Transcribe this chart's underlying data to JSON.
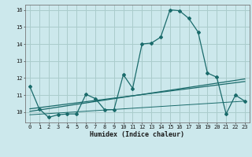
{
  "xlabel": "Humidex (Indice chaleur)",
  "bg_color": "#cce8ec",
  "grid_color": "#aacccc",
  "line_color": "#1a6b6b",
  "xlim": [
    -0.5,
    23.5
  ],
  "ylim": [
    9.4,
    16.3
  ],
  "xticks": [
    0,
    1,
    2,
    3,
    4,
    5,
    6,
    7,
    8,
    9,
    10,
    11,
    12,
    13,
    14,
    15,
    16,
    17,
    18,
    19,
    20,
    21,
    22,
    23
  ],
  "yticks": [
    10,
    11,
    12,
    13,
    14,
    15,
    16
  ],
  "series1_x": [
    0,
    1,
    2,
    3,
    4,
    5,
    6,
    7,
    8,
    9,
    10,
    11,
    12,
    13,
    14,
    15,
    16,
    17,
    18,
    19,
    20,
    21,
    22,
    23
  ],
  "series1_y": [
    11.5,
    10.2,
    9.7,
    9.85,
    9.9,
    9.9,
    11.05,
    10.8,
    10.15,
    10.15,
    12.2,
    11.4,
    14.0,
    14.05,
    14.4,
    16.0,
    15.95,
    15.5,
    14.7,
    12.3,
    12.05,
    9.9,
    11.0,
    10.65
  ],
  "series2_x": [
    0,
    23
  ],
  "series2_y": [
    10.05,
    11.95
  ],
  "series3_x": [
    0,
    23
  ],
  "series3_y": [
    10.2,
    11.8
  ],
  "series4_x": [
    0,
    23
  ],
  "series4_y": [
    9.85,
    10.65
  ]
}
